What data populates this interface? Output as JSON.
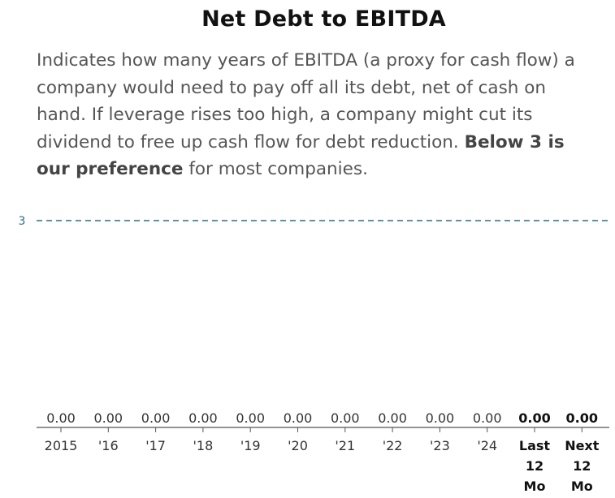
{
  "title": "Net Debt to EBITDA",
  "description": {
    "text": "Indicates how many years of EBITDA (a proxy for cash flow) a company would need to pay off all its debt, net of cash on hand. If leverage rises too high, a company might cut its dividend to free up cash flow for debt reduction. ",
    "bold": "Below 3 is our preference",
    "tail": " for most companies."
  },
  "colors": {
    "reference_line": "#2b6f87",
    "axis": "#555555"
  },
  "chart_data": {
    "type": "bar",
    "categories": [
      "2015",
      "'16",
      "'17",
      "'18",
      "'19",
      "'20",
      "'21",
      "'22",
      "'23",
      "'24",
      "Last 12 Mo",
      "Next 12 Mo"
    ],
    "values": [
      0.0,
      0.0,
      0.0,
      0.0,
      0.0,
      0.0,
      0.0,
      0.0,
      0.0,
      0.0,
      0.0,
      0.0
    ],
    "value_labels": [
      "0.00",
      "0.00",
      "0.00",
      "0.00",
      "0.00",
      "0.00",
      "0.00",
      "0.00",
      "0.00",
      "0.00",
      "0.00",
      "0.00"
    ],
    "highlighted_categories": [
      "Last 12 Mo",
      "Next 12 Mo"
    ],
    "reference_line": {
      "value": 3,
      "label": "3",
      "style": "dashed"
    },
    "ylim": [
      0,
      3
    ],
    "title": "Net Debt to EBITDA"
  }
}
